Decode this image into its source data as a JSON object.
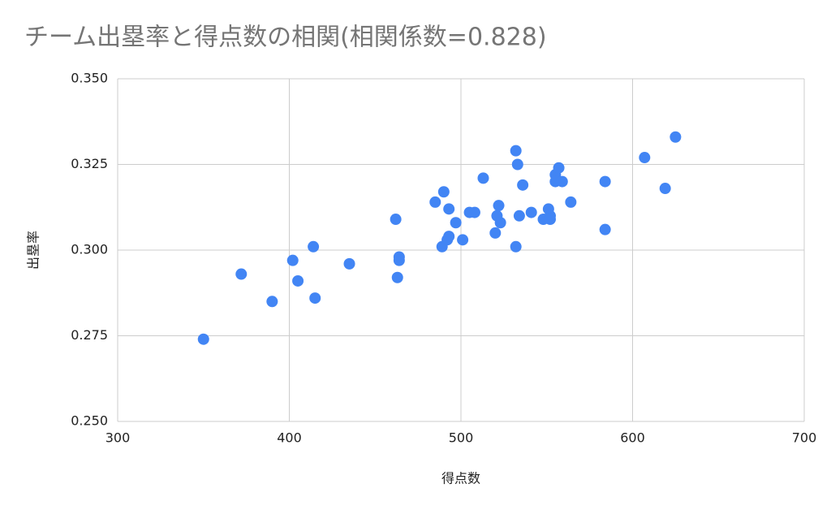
{
  "chart_data": {
    "type": "scatter",
    "title": "チーム出塁率と得点数の相関(相関係数=0.828)",
    "x_label": "得点数",
    "y_label": "出塁率",
    "color": "#4285f4",
    "grid": true,
    "xlim": [
      300,
      700
    ],
    "xticks": [
      300,
      400,
      500,
      600,
      700
    ],
    "ylim": [
      0.25,
      0.35
    ],
    "yticks": [
      {
        "value": 0.25,
        "label": "0.250"
      },
      {
        "value": 0.275,
        "label": "0.275"
      },
      {
        "value": 0.3,
        "label": "0.300"
      },
      {
        "value": 0.325,
        "label": "0.325"
      },
      {
        "value": 0.35,
        "label": "0.350"
      }
    ],
    "x": [
      350,
      372,
      390,
      402,
      405,
      414,
      415,
      435,
      462,
      463,
      464,
      464,
      485,
      489,
      490,
      492,
      493,
      493,
      497,
      501,
      505,
      508,
      513,
      520,
      521,
      522,
      523,
      532,
      532,
      533,
      534,
      536,
      541,
      548,
      551,
      552,
      552,
      555,
      555,
      557,
      559,
      564,
      584,
      584,
      607,
      619,
      625
    ],
    "values": [
      0.274,
      0.293,
      0.285,
      0.297,
      0.291,
      0.301,
      0.286,
      0.296,
      0.309,
      0.292,
      0.298,
      0.297,
      0.314,
      0.301,
      0.317,
      0.303,
      0.312,
      0.304,
      0.308,
      0.303,
      0.311,
      0.311,
      0.321,
      0.305,
      0.31,
      0.313,
      0.308,
      0.329,
      0.301,
      0.325,
      0.31,
      0.319,
      0.311,
      0.309,
      0.312,
      0.31,
      0.309,
      0.322,
      0.32,
      0.324,
      0.32,
      0.314,
      0.32,
      0.306,
      0.327,
      0.318,
      0.333
    ]
  }
}
